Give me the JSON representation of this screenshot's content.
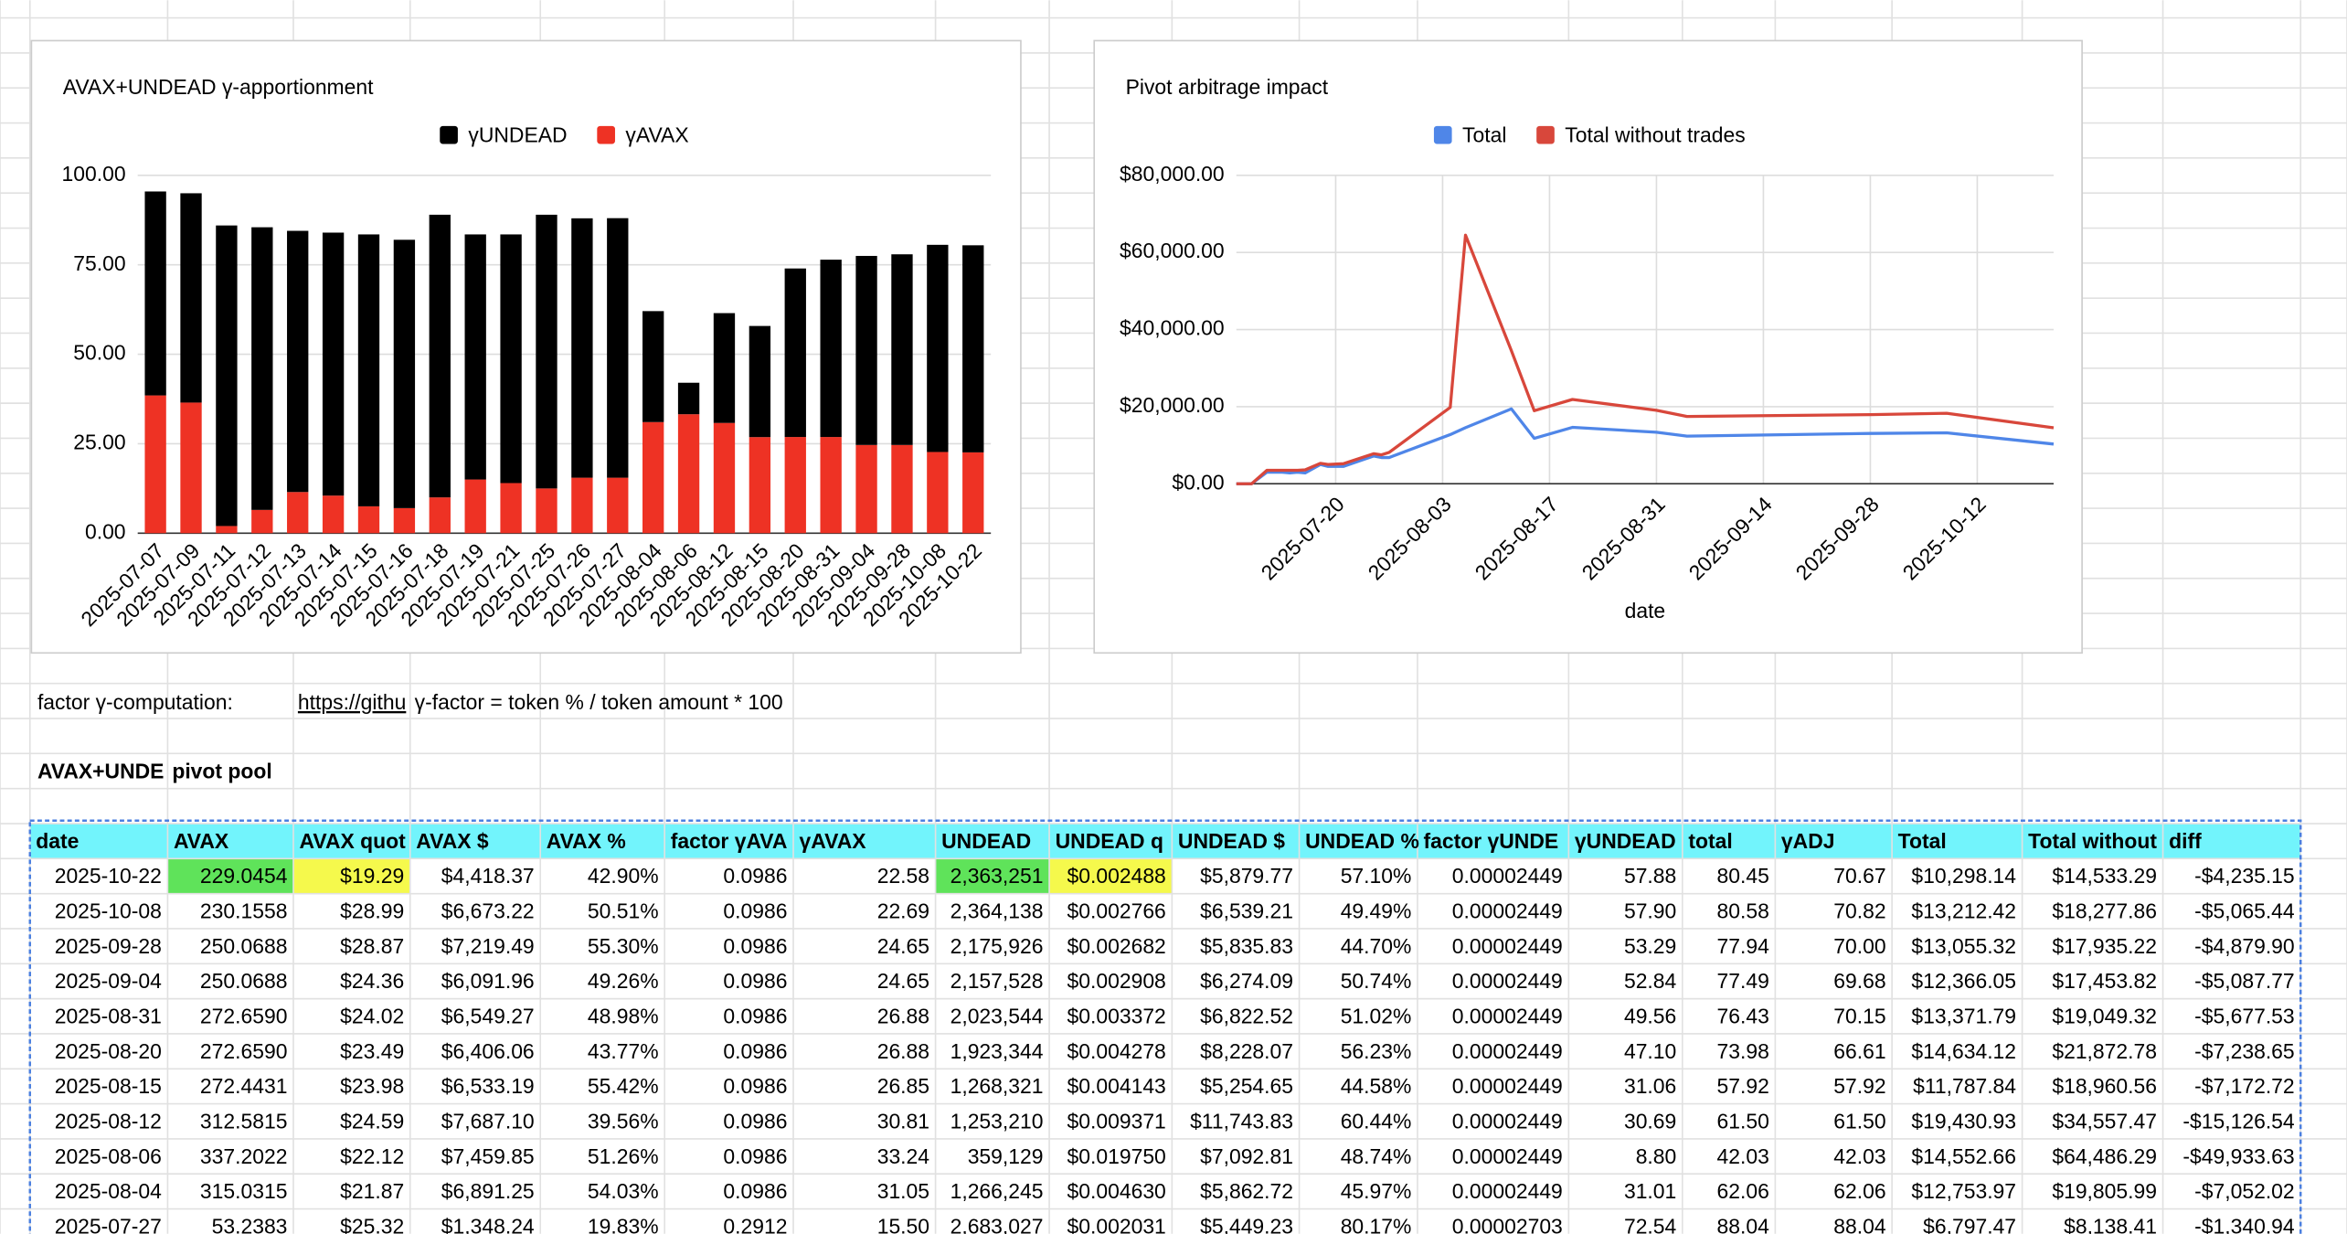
{
  "chart_data": [
    {
      "type": "bar",
      "title": "AVAX+UNDEAD γ-apportionment",
      "stacked": true,
      "categories": [
        "2025-07-07",
        "2025-07-09",
        "2025-07-11",
        "2025-07-12",
        "2025-07-13",
        "2025-07-14",
        "2025-07-15",
        "2025-07-16",
        "2025-07-18",
        "2025-07-19",
        "2025-07-21",
        "2025-07-25",
        "2025-07-26",
        "2025-07-27",
        "2025-08-04",
        "2025-08-06",
        "2025-08-12",
        "2025-08-15",
        "2025-08-20",
        "2025-08-31",
        "2025-09-04",
        "2025-09-28",
        "2025-10-08",
        "2025-10-22"
      ],
      "series": [
        {
          "name": "γUNDEAD",
          "color": "#000000",
          "values": [
            57,
            58.5,
            84,
            79,
            73,
            73.5,
            76,
            75,
            79,
            68.5,
            69.5,
            76.5,
            72.5,
            72.54,
            31.01,
            8.8,
            30.69,
            31.06,
            47.1,
            49.56,
            52.84,
            53.29,
            57.9,
            57.88
          ]
        },
        {
          "name": "γAVAX",
          "color": "#ee3224",
          "values": [
            38.5,
            36.5,
            2,
            6.5,
            11.5,
            10.5,
            7.5,
            7,
            10,
            15,
            14,
            12.5,
            15.5,
            15.5,
            31.05,
            33.24,
            30.81,
            26.85,
            26.88,
            26.88,
            24.65,
            24.65,
            22.69,
            22.58
          ]
        }
      ],
      "ylim": [
        0,
        100
      ],
      "yticks": [
        {
          "value": 0,
          "label": "0.00"
        },
        {
          "value": 25,
          "label": "25.00"
        },
        {
          "value": 50,
          "label": "50.00"
        },
        {
          "value": 75,
          "label": "75.00"
        },
        {
          "value": 100,
          "label": "100.00"
        }
      ],
      "grid": true,
      "legend": "top"
    },
    {
      "type": "line",
      "title": "Pivot arbitrage impact",
      "x_label": "date",
      "x": [
        "2025-07-07",
        "2025-07-09",
        "2025-07-11",
        "2025-07-12",
        "2025-07-13",
        "2025-07-14",
        "2025-07-15",
        "2025-07-16",
        "2025-07-18",
        "2025-07-19",
        "2025-07-21",
        "2025-07-25",
        "2025-07-26",
        "2025-07-27",
        "2025-08-04",
        "2025-08-06",
        "2025-08-12",
        "2025-08-15",
        "2025-08-20",
        "2025-08-31",
        "2025-09-04",
        "2025-09-28",
        "2025-10-08",
        "2025-10-22"
      ],
      "series": [
        {
          "name": "Total",
          "color": "#4f86e8",
          "values": [
            0,
            0,
            3000,
            3000,
            3000,
            2800,
            3000,
            2800,
            5000,
            4500,
            4500,
            7200,
            6800,
            6797.47,
            12753.97,
            14552.66,
            19430.93,
            11787.84,
            14634.12,
            13371.79,
            12366.05,
            13055.32,
            13212.42,
            10298.14
          ]
        },
        {
          "name": "Total without trades",
          "color": "#d8473b",
          "values": [
            0,
            0,
            3500,
            3500,
            3500,
            3500,
            3500,
            3600,
            5300,
            5000,
            5200,
            7800,
            7500,
            8138.41,
            19805.99,
            64486.29,
            34557.47,
            18960.56,
            21872.78,
            19049.32,
            17453.82,
            17935.22,
            18277.86,
            14533.29
          ]
        }
      ],
      "xlim": [
        "2025-07-07",
        "2025-10-22"
      ],
      "xticks": [
        "2025-07-20",
        "2025-08-03",
        "2025-08-17",
        "2025-08-31",
        "2025-09-14",
        "2025-09-28",
        "2025-10-12"
      ],
      "ylim": [
        0,
        80000
      ],
      "yticks": [
        {
          "value": 0,
          "label": "$0.00"
        },
        {
          "value": 20000,
          "label": "$20,000.00"
        },
        {
          "value": 40000,
          "label": "$40,000.00"
        },
        {
          "value": 60000,
          "label": "$60,000.00"
        },
        {
          "value": 80000,
          "label": "$80,000.00"
        }
      ],
      "grid": true,
      "legend": "top"
    }
  ],
  "notes": {
    "label": "factor γ-computation:",
    "link": "https://githu",
    "formula": "γ-factor = token % / token amount * 100"
  },
  "section": [
    "AVAX+UNDE",
    "pivot pool"
  ],
  "table": {
    "header": [
      "date",
      "AVAX",
      "AVAX quot",
      "AVAX $",
      "AVAX %",
      "factor γAVA",
      "γAVAX",
      "UNDEAD",
      "UNDEAD q",
      "UNDEAD $",
      "UNDEAD %",
      "factor γUNDE",
      "γUNDEAD",
      "total",
      "γADJ",
      "Total",
      "Total without",
      "diff"
    ],
    "rows": [
      [
        "2025-10-22",
        "229.0454",
        "$19.29",
        "$4,418.37",
        "42.90%",
        "0.0986",
        "22.58",
        "2,363,251",
        "$0.002488",
        "$5,879.77",
        "57.10%",
        "0.00002449",
        "57.88",
        "80.45",
        "70.67",
        "$10,298.14",
        "$14,533.29",
        "-$4,235.15"
      ],
      [
        "2025-10-08",
        "230.1558",
        "$28.99",
        "$6,673.22",
        "50.51%",
        "0.0986",
        "22.69",
        "2,364,138",
        "$0.002766",
        "$6,539.21",
        "49.49%",
        "0.00002449",
        "57.90",
        "80.58",
        "70.82",
        "$13,212.42",
        "$18,277.86",
        "-$5,065.44"
      ],
      [
        "2025-09-28",
        "250.0688",
        "$28.87",
        "$7,219.49",
        "55.30%",
        "0.0986",
        "24.65",
        "2,175,926",
        "$0.002682",
        "$5,835.83",
        "44.70%",
        "0.00002449",
        "53.29",
        "77.94",
        "70.00",
        "$13,055.32",
        "$17,935.22",
        "-$4,879.90"
      ],
      [
        "2025-09-04",
        "250.0688",
        "$24.36",
        "$6,091.96",
        "49.26%",
        "0.0986",
        "24.65",
        "2,157,528",
        "$0.002908",
        "$6,274.09",
        "50.74%",
        "0.00002449",
        "52.84",
        "77.49",
        "69.68",
        "$12,366.05",
        "$17,453.82",
        "-$5,087.77"
      ],
      [
        "2025-08-31",
        "272.6590",
        "$24.02",
        "$6,549.27",
        "48.98%",
        "0.0986",
        "26.88",
        "2,023,544",
        "$0.003372",
        "$6,822.52",
        "51.02%",
        "0.00002449",
        "49.56",
        "76.43",
        "70.15",
        "$13,371.79",
        "$19,049.32",
        "-$5,677.53"
      ],
      [
        "2025-08-20",
        "272.6590",
        "$23.49",
        "$6,406.06",
        "43.77%",
        "0.0986",
        "26.88",
        "1,923,344",
        "$0.004278",
        "$8,228.07",
        "56.23%",
        "0.00002449",
        "47.10",
        "73.98",
        "66.61",
        "$14,634.12",
        "$21,872.78",
        "-$7,238.65"
      ],
      [
        "2025-08-15",
        "272.4431",
        "$23.98",
        "$6,533.19",
        "55.42%",
        "0.0986",
        "26.85",
        "1,268,321",
        "$0.004143",
        "$5,254.65",
        "44.58%",
        "0.00002449",
        "31.06",
        "57.92",
        "57.92",
        "$11,787.84",
        "$18,960.56",
        "-$7,172.72"
      ],
      [
        "2025-08-12",
        "312.5815",
        "$24.59",
        "$7,687.10",
        "39.56%",
        "0.0986",
        "30.81",
        "1,253,210",
        "$0.009371",
        "$11,743.83",
        "60.44%",
        "0.00002449",
        "30.69",
        "61.50",
        "61.50",
        "$19,430.93",
        "$34,557.47",
        "-$15,126.54"
      ],
      [
        "2025-08-06",
        "337.2022",
        "$22.12",
        "$7,459.85",
        "51.26%",
        "0.0986",
        "33.24",
        "359,129",
        "$0.019750",
        "$7,092.81",
        "48.74%",
        "0.00002449",
        "8.80",
        "42.03",
        "42.03",
        "$14,552.66",
        "$64,486.29",
        "-$49,933.63"
      ],
      [
        "2025-08-04",
        "315.0315",
        "$21.87",
        "$6,891.25",
        "54.03%",
        "0.0986",
        "31.05",
        "1,266,245",
        "$0.004630",
        "$5,862.72",
        "45.97%",
        "0.00002449",
        "31.01",
        "62.06",
        "62.06",
        "$12,753.97",
        "$19,805.99",
        "-$7,052.02"
      ],
      [
        "2025-07-27",
        "53.2383",
        "$25.32",
        "$1,348.24",
        "19.83%",
        "0.2912",
        "15.50",
        "2,683,027",
        "$0.002031",
        "$5,449.23",
        "80.17%",
        "0.00002703",
        "72.54",
        "88.04",
        "88.04",
        "$6,797.47",
        "$8,138.41",
        "-$1,340.94"
      ]
    ]
  }
}
